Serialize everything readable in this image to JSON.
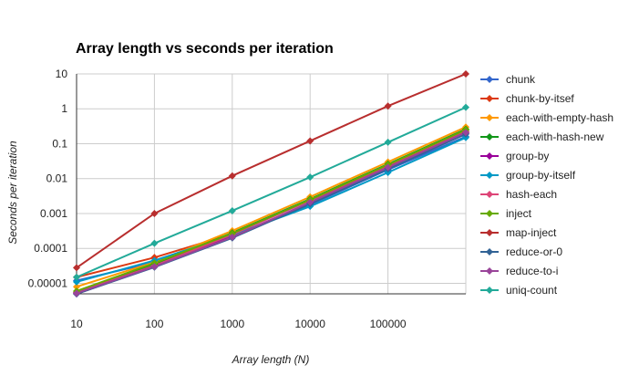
{
  "chart_data": {
    "type": "line",
    "title": "Array length vs seconds per iteration",
    "xlabel": "Array length (N)",
    "ylabel": "Seconds per iteration",
    "x_scale": "log",
    "y_scale": "log",
    "x": [
      10,
      100,
      1000,
      10000,
      100000,
      1000000
    ],
    "x_ticks": [
      "10",
      "100",
      "1000",
      "10000",
      "100000"
    ],
    "y_ticks": [
      "0.00001",
      "0.0001",
      "0.001",
      "0.01",
      "0.1",
      "1",
      "10"
    ],
    "ylim": [
      5e-06,
      10
    ],
    "grid": true,
    "legend_position": "right",
    "series": [
      {
        "name": "chunk",
        "color": "#3366cc",
        "values": [
          1.2e-05,
          4e-05,
          0.00022,
          0.0018,
          0.018,
          0.16
        ]
      },
      {
        "name": "chunk-by-itsef",
        "color": "#dc3912",
        "values": [
          1.5e-05,
          5.5e-05,
          0.00026,
          0.0024,
          0.022,
          0.22
        ]
      },
      {
        "name": "each-with-empty-hash",
        "color": "#ff9900",
        "values": [
          8e-06,
          4e-05,
          0.00032,
          0.003,
          0.03,
          0.3
        ]
      },
      {
        "name": "each-with-hash-new",
        "color": "#109618",
        "values": [
          5.5e-06,
          3.5e-05,
          0.00028,
          0.0026,
          0.026,
          0.26
        ]
      },
      {
        "name": "group-by",
        "color": "#990099",
        "values": [
          5e-06,
          3e-05,
          0.00022,
          0.002,
          0.02,
          0.2
        ]
      },
      {
        "name": "group-by-itself",
        "color": "#0099c6",
        "values": [
          1.1e-05,
          4.5e-05,
          0.00024,
          0.0016,
          0.015,
          0.15
        ]
      },
      {
        "name": "hash-each",
        "color": "#dd4477",
        "values": [
          5.5e-06,
          3.2e-05,
          0.00025,
          0.0024,
          0.024,
          0.24
        ]
      },
      {
        "name": "inject",
        "color": "#66aa00",
        "values": [
          6e-06,
          3.8e-05,
          0.00027,
          0.0025,
          0.025,
          0.25
        ]
      },
      {
        "name": "map-inject",
        "color": "#b82e2e",
        "values": [
          2.8e-05,
          0.001,
          0.012,
          0.12,
          1.2,
          10
        ]
      },
      {
        "name": "reduce-or-0",
        "color": "#316395",
        "values": [
          5e-06,
          2.9e-05,
          0.0002,
          0.0019,
          0.019,
          0.19
        ]
      },
      {
        "name": "reduce-to-i",
        "color": "#994499",
        "values": [
          5.2e-06,
          3e-05,
          0.00021,
          0.0021,
          0.021,
          0.21
        ]
      },
      {
        "name": "uniq-count",
        "color": "#22aa99",
        "values": [
          1.5e-05,
          0.00014,
          0.0012,
          0.011,
          0.11,
          1.1
        ]
      }
    ]
  }
}
